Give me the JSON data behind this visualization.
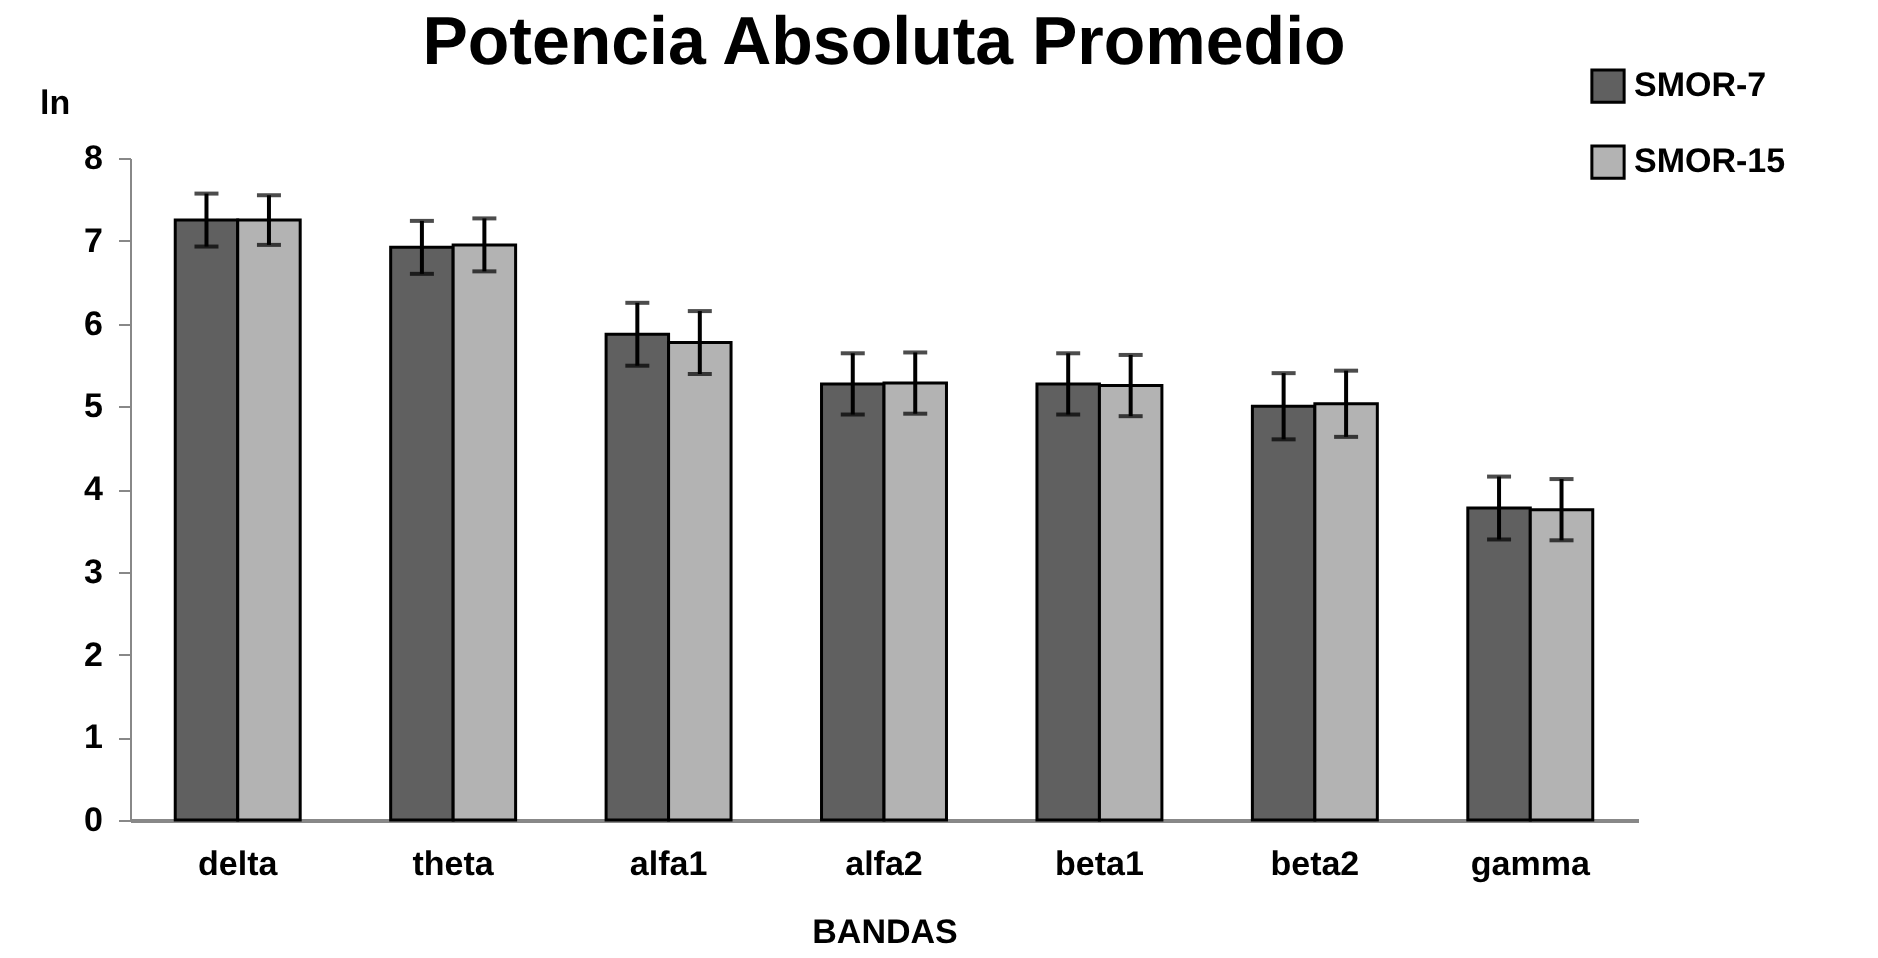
{
  "chart_data": {
    "type": "bar",
    "title": "Potencia Absoluta Promedio",
    "xlabel": "BANDAS",
    "ylabel": "ln",
    "categories": [
      "delta",
      "theta",
      "alfa1",
      "alfa2",
      "beta1",
      "beta2",
      "gamma"
    ],
    "series": [
      {
        "name": "SMOR-7",
        "color": "#606060",
        "values": [
          7.25,
          6.92,
          5.87,
          5.27,
          5.27,
          5.0,
          3.77
        ],
        "errors": [
          0.32,
          0.32,
          0.38,
          0.37,
          0.37,
          0.4,
          0.38
        ]
      },
      {
        "name": "SMOR-15",
        "color": "#b3b3b3",
        "values": [
          7.25,
          6.95,
          5.77,
          5.28,
          5.25,
          5.03,
          3.75
        ],
        "errors": [
          0.3,
          0.32,
          0.38,
          0.37,
          0.37,
          0.4,
          0.37
        ]
      }
    ],
    "ylim": [
      0,
      8
    ],
    "yticks": [
      0,
      1,
      2,
      3,
      4,
      5,
      6,
      7,
      8
    ],
    "grid": false,
    "legend": "top right"
  }
}
